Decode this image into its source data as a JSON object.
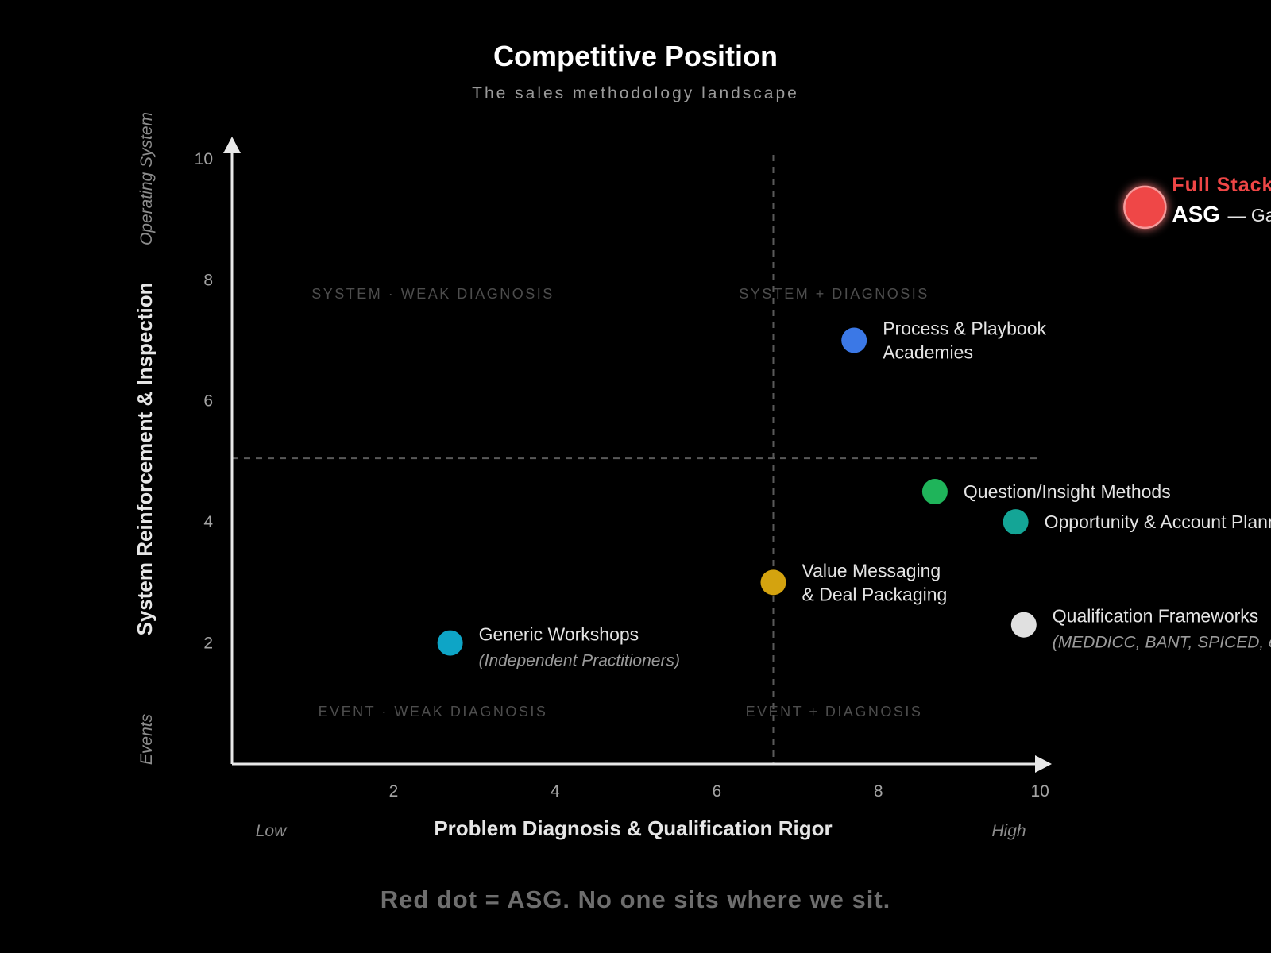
{
  "colors": {
    "background": "#000000",
    "axis": "#e8e8e8",
    "grid_dashed": "#5a5a5a",
    "highlight": "#ef4646"
  },
  "chart_data": {
    "type": "scatter",
    "title": "Competitive Position",
    "subtitle": "The sales methodology landscape",
    "xlabel": "Problem Diagnosis & Qualification Rigor",
    "ylabel": "System Reinforcement & Inspection",
    "x_low_label": "Low",
    "x_high_label": "High",
    "y_low_label": "Events",
    "y_high_label": "Operating System",
    "xlim": [
      0,
      10.5
    ],
    "ylim": [
      0,
      10.3
    ],
    "x_ticks": [
      2,
      4,
      6,
      8,
      10
    ],
    "y_ticks": [
      2,
      4,
      6,
      8,
      10
    ],
    "x_divider": 6.7,
    "y_divider": 5.05,
    "quadrants": [
      {
        "label": "SYSTEM · WEAK DIAGNOSIS",
        "position": "top-left"
      },
      {
        "label": "SYSTEM + DIAGNOSIS",
        "position": "top-right"
      },
      {
        "label": "EVENT · WEAK DIAGNOSIS",
        "position": "bottom-left"
      },
      {
        "label": "EVENT + DIAGNOSIS",
        "position": "bottom-right"
      }
    ],
    "points": [
      {
        "name": "Generic Workshops",
        "sublabel": "(Independent Practitioners)",
        "x": 2.7,
        "y": 2.0,
        "color": "#0ea5c6"
      },
      {
        "name": "Value Messaging",
        "name_line2": "& Deal Packaging",
        "x": 6.7,
        "y": 3.0,
        "color": "#d4a30f"
      },
      {
        "name": "Qualification Frameworks",
        "sublabel": "(MEDDICC, BANT, SPICED, etc.)",
        "x": 9.8,
        "y": 2.3,
        "color": "#e0e0e0"
      },
      {
        "name": "Question/Insight Methods",
        "x": 8.7,
        "y": 4.5,
        "color": "#1fb45a"
      },
      {
        "name": "Opportunity & Account Planning",
        "x": 9.7,
        "y": 4.0,
        "color": "#14a596"
      },
      {
        "name": "Process & Playbook",
        "name_line2": "Academies",
        "x": 7.7,
        "y": 7.0,
        "color": "#3b78e6"
      }
    ],
    "highlight": {
      "title": "Full Stack Operating System",
      "name": "ASG",
      "description": "— Gap Method + OS",
      "x": 11.3,
      "y": 9.2,
      "color": "#ef4646"
    }
  },
  "footer": "Red dot = ASG. No one sits where we sit."
}
